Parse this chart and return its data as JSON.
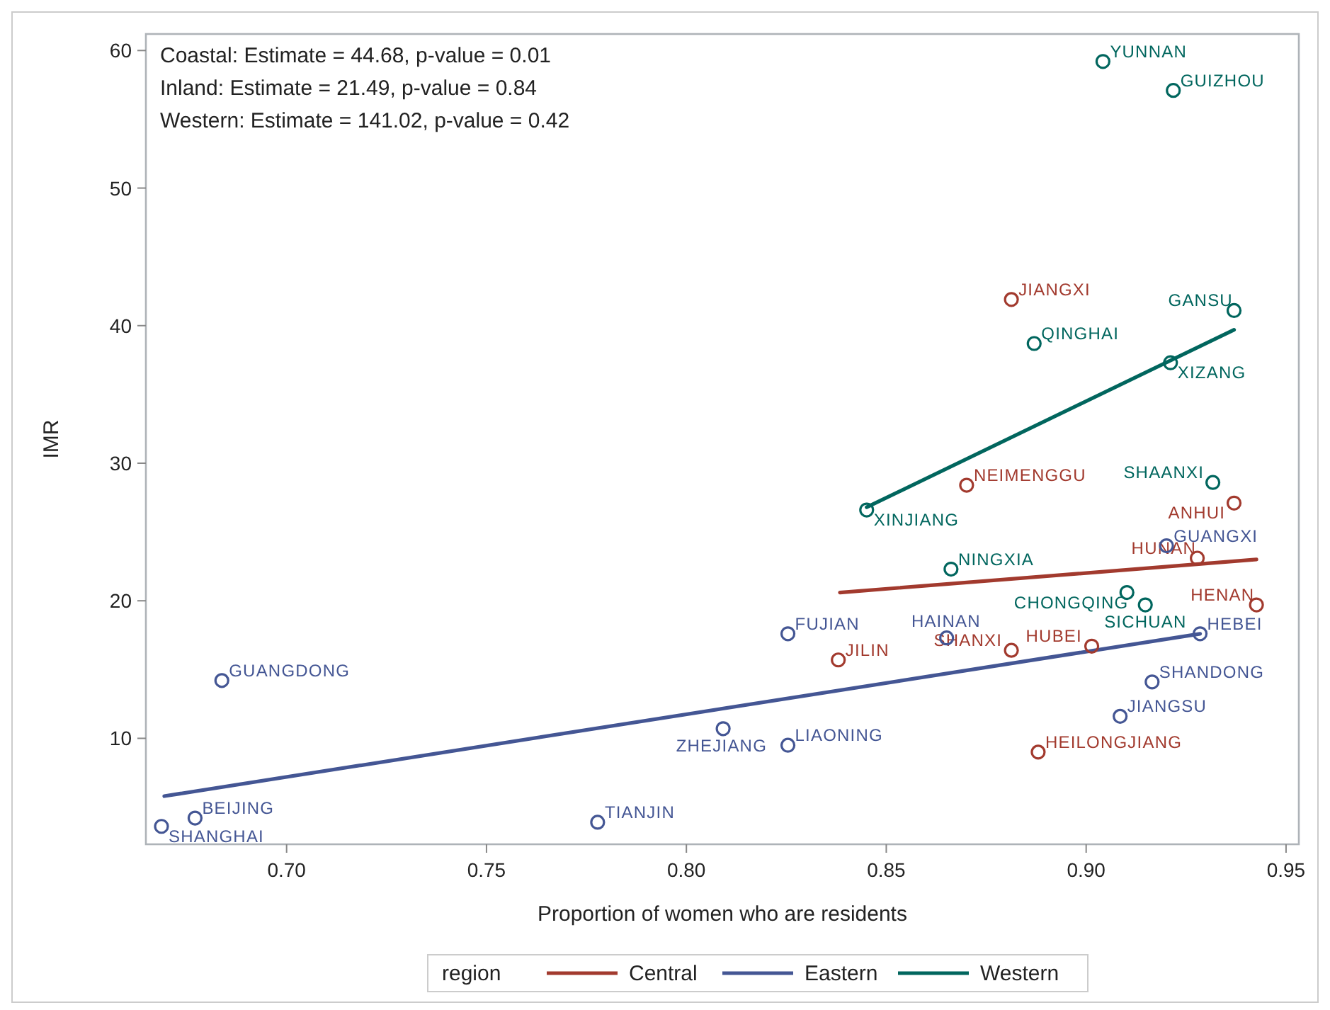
{
  "chart_data": {
    "type": "scatter",
    "xlabel": "Proportion of women who are residents",
    "ylabel": "IMR",
    "xlim": [
      0.6648,
      0.9532
    ],
    "ylim": [
      2.3,
      61.2
    ],
    "xticks": [
      {
        "value": 0.7,
        "label": "0.70"
      },
      {
        "value": 0.75,
        "label": "0.75"
      },
      {
        "value": 0.8,
        "label": "0.80"
      },
      {
        "value": 0.85,
        "label": "0.85"
      },
      {
        "value": 0.9,
        "label": "0.90"
      },
      {
        "value": 0.95,
        "label": "0.95"
      }
    ],
    "yticks": [
      10,
      20,
      30,
      40,
      50,
      60
    ],
    "grid": false,
    "legend": "bottom",
    "legend_title": "region",
    "annotations": [
      "Coastal: Estimate = 44.68, p-value = 0.01",
      "Inland: Estimate = 21.49, p-value = 0.84",
      "Western: Estimate = 141.02, p-value = 0.42"
    ],
    "series": [
      {
        "marker": "circle",
        "color": "#a23a2e",
        "x": [
          0.8813,
          0.8701,
          0.937,
          0.9278,
          0.9426,
          0.9014,
          0.8813,
          0.838,
          0.888
        ],
        "values": [
          41.9,
          28.4,
          27.1,
          23.1,
          19.7,
          16.7,
          16.4,
          15.7,
          9.0
        ],
        "value_labels": [
          "JIANGXI",
          "NEIMENGGU",
          "ANHUI",
          "HUNAN",
          "HENAN",
          "HUBEI",
          "SHANXI",
          "JILIN",
          "HEILONGJIANG"
        ]
      },
      {
        "marker": "circle",
        "color": "#445694",
        "x": [
          0.6687,
          0.6771,
          0.6838,
          0.7778,
          0.8092,
          0.8254,
          0.8254,
          0.8651,
          0.9201,
          0.9285,
          0.9165,
          0.9085
        ],
        "values": [
          3.6,
          4.2,
          14.2,
          3.9,
          10.7,
          9.5,
          17.6,
          17.3,
          24.0,
          17.6,
          14.1,
          11.6
        ],
        "value_labels": [
          "SHANGHAI",
          "BEIJING",
          "GUANGDONG",
          "TIANJIN",
          "ZHEJIANG",
          "LIAONING",
          "FUJIAN",
          "HAINAN",
          "GUANGXI",
          "HEBEI",
          "SHANDONG",
          "JIANGSU"
        ]
      },
      {
        "marker": "circle",
        "color": "#01665e",
        "x": [
          0.9042,
          0.9218,
          0.937,
          0.887,
          0.9211,
          0.8451,
          0.9317,
          0.8662,
          0.9102,
          0.9148
        ],
        "values": [
          59.2,
          57.1,
          41.1,
          38.7,
          37.3,
          26.6,
          28.6,
          22.3,
          20.6,
          19.7
        ],
        "value_labels": [
          "YUNNAN",
          "GUIZHOU",
          "GANSU",
          "QINGHAI",
          "XIZANG",
          "XINJIANG",
          "SHAANXI",
          "NINGXIA",
          "CHONGQING",
          "SICHUAN"
        ]
      },
      {
        "type": "line",
        "name": "Central",
        "color": "#a23a2e",
        "marker": "none",
        "line_style": "solid",
        "x": [
          0.8384,
          0.9426
        ],
        "values": [
          20.6,
          23.0
        ]
      },
      {
        "type": "line",
        "name": "Eastern",
        "color": "#445694",
        "marker": "none",
        "line_style": "solid",
        "x": [
          0.6694,
          0.9285
        ],
        "values": [
          5.8,
          17.6
        ]
      },
      {
        "type": "line",
        "name": "Western",
        "color": "#01665e",
        "marker": "none",
        "line_style": "solid",
        "x": [
          0.8451,
          0.937
        ],
        "values": [
          26.8,
          39.7
        ]
      }
    ]
  }
}
